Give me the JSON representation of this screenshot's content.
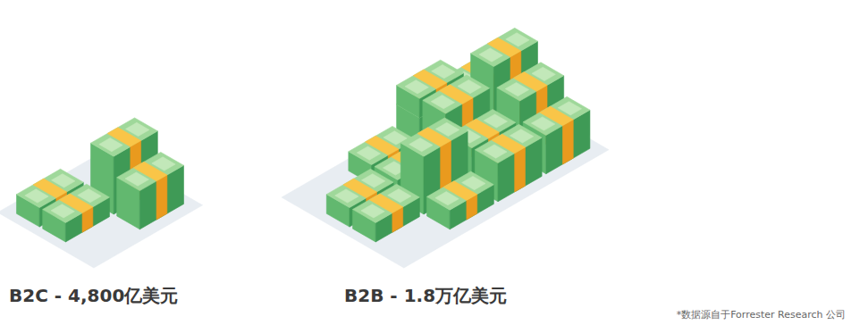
{
  "chart_data": {
    "type": "pictograph",
    "categories": [
      "B2C - 4,800亿美元",
      "B2B - 1.8万亿美元"
    ],
    "values": [
      4800,
      18000
    ],
    "annotations": [
      "*数据源自于Forrester Research 公司"
    ]
  }
}
